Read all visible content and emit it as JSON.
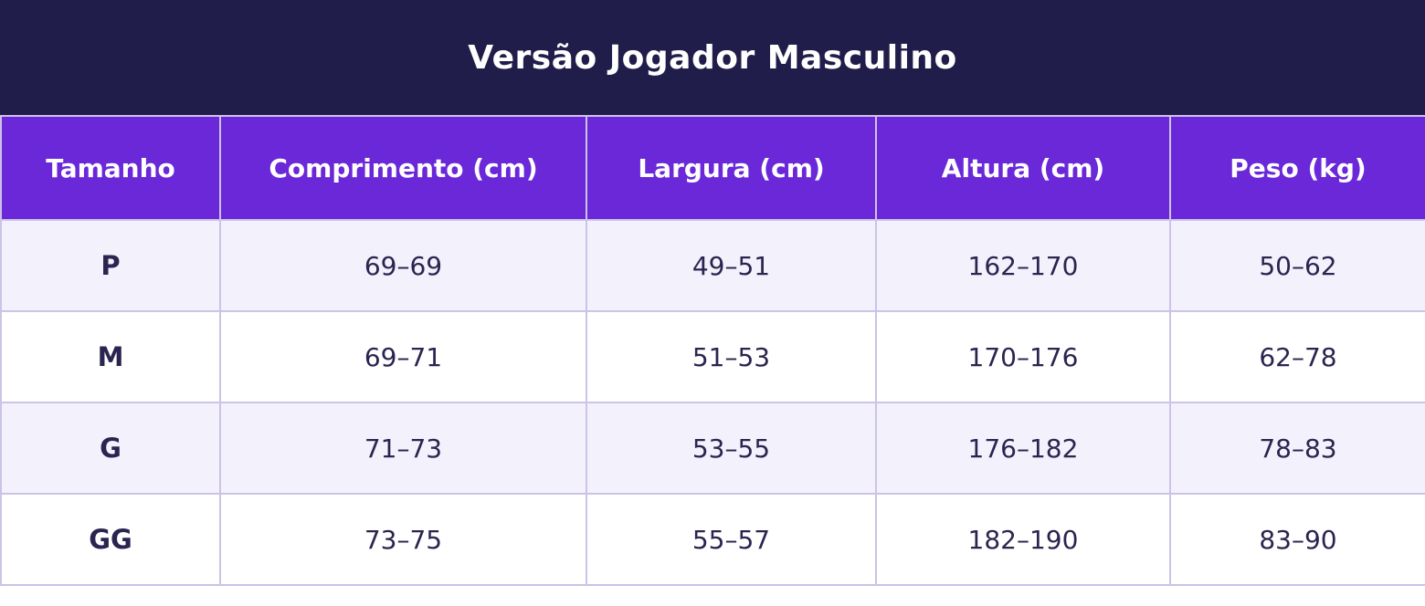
{
  "chart_data": {
    "type": "table",
    "title": "Versão Jogador Masculino",
    "columns": [
      "Tamanho",
      "Comprimento (cm)",
      "Largura (cm)",
      "Altura (cm)",
      "Peso (kg)"
    ],
    "rows": [
      [
        "P",
        "69–69",
        "49–51",
        "162–170",
        "50–62"
      ],
      [
        "M",
        "69–71",
        "51–53",
        "170–176",
        "62–78"
      ],
      [
        "G",
        "71–73",
        "53–55",
        "176–182",
        "78–83"
      ],
      [
        "GG",
        "73–75",
        "55–57",
        "182–190",
        "83–90"
      ]
    ],
    "layout": {
      "header_position": "top",
      "row_striping": "odd-rows-lavender"
    }
  },
  "colors": {
    "title_bar_bg": "#211d4b",
    "header_bg": "#6a28d9",
    "border": "#cdc3e8",
    "row_alt_bg": "#f3f1fb",
    "row_bg": "#ffffff",
    "text_dark": "#2a2550",
    "text_light": "#ffffff"
  }
}
